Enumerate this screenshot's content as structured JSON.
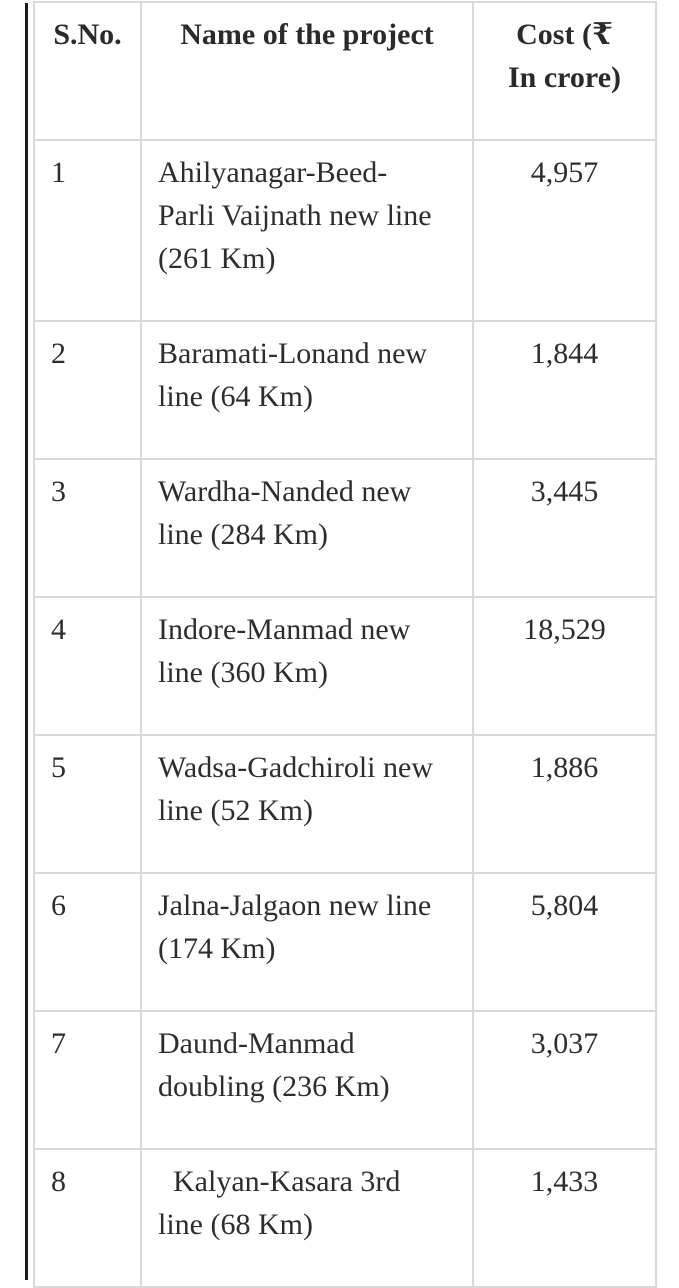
{
  "page": {
    "background_color": "#ffffff",
    "left_bar_color": "#1b1b1b"
  },
  "table": {
    "border_color": "#d9d9d9",
    "text_color": "#2d2d2d",
    "headers": {
      "sno": "S.No.",
      "name": "Name of the project",
      "cost": "Cost (₹\nIn crore)"
    },
    "rows": [
      {
        "sno": "1",
        "name": "Ahilyanagar-Beed-\nParli Vaijnath new line\n(261 Km)",
        "cost": "4,957"
      },
      {
        "sno": "2",
        "name": "Baramati-Lonand new\nline (64 Km)",
        "cost": "1,844"
      },
      {
        "sno": "3",
        "name": "Wardha-Nanded new\nline (284 Km)",
        "cost": "3,445"
      },
      {
        "sno": "4",
        "name": "Indore-Manmad new\nline (360 Km)",
        "cost": "18,529"
      },
      {
        "sno": "5",
        "name": "Wadsa-Gadchiroli new\nline (52 Km)",
        "cost": "1,886"
      },
      {
        "sno": "6",
        "name": "Jalna-Jalgaon new line\n(174 Km)",
        "cost": "5,804"
      },
      {
        "sno": "7",
        "name": "Daund-Manmad\ndoubling (236 Km)",
        "cost": "3,037"
      },
      {
        "sno": "8",
        "name": "  Kalyan-Kasara 3rd\nline (68 Km)",
        "cost": "1,433"
      }
    ]
  }
}
